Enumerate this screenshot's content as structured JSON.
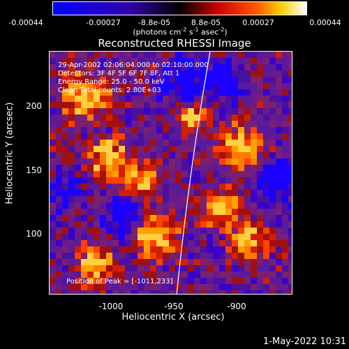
{
  "colorbar": {
    "tick_labels": [
      "-0.00044",
      "-0.00027",
      "-8.8e-05",
      "8.8e-05",
      "0.00027",
      "0.00044"
    ],
    "units_prefix": "(photons cm",
    "units_exp1": "-2",
    "units_mid1": " s",
    "units_exp2": "-1",
    "units_mid2": " asec",
    "units_exp3": "-2",
    "units_suffix": ")",
    "colors": [
      "#0000ff",
      "#3300cc",
      "#000000",
      "#cc0000",
      "#ff6600",
      "#ffcc00",
      "#ffffff"
    ]
  },
  "plot": {
    "title": "Reconstructed RHESSI Image",
    "annotation_line1": "29-Apr-2002 02:06:04.000 to 02:10:00.000",
    "annotation_line2": "Detectors: 3F 4F 5F 6F 7F 8F, Att 1",
    "annotation_line3": "Energy Range: 25.0 - 50.0 keV",
    "annotation_line4": "Clean    Total counts: 2.80E+03",
    "peak_label": "Position of Peak = [-1011,233]",
    "xlabel": "Heliocentric X (arcsec)",
    "ylabel": "Heliocentric Y (arcsec)",
    "x_ticks": [
      "-1000",
      "-950",
      "-900"
    ],
    "y_ticks": [
      "200",
      "150",
      "100"
    ]
  },
  "footer": {
    "date": "1-May-2022 10:31"
  }
}
